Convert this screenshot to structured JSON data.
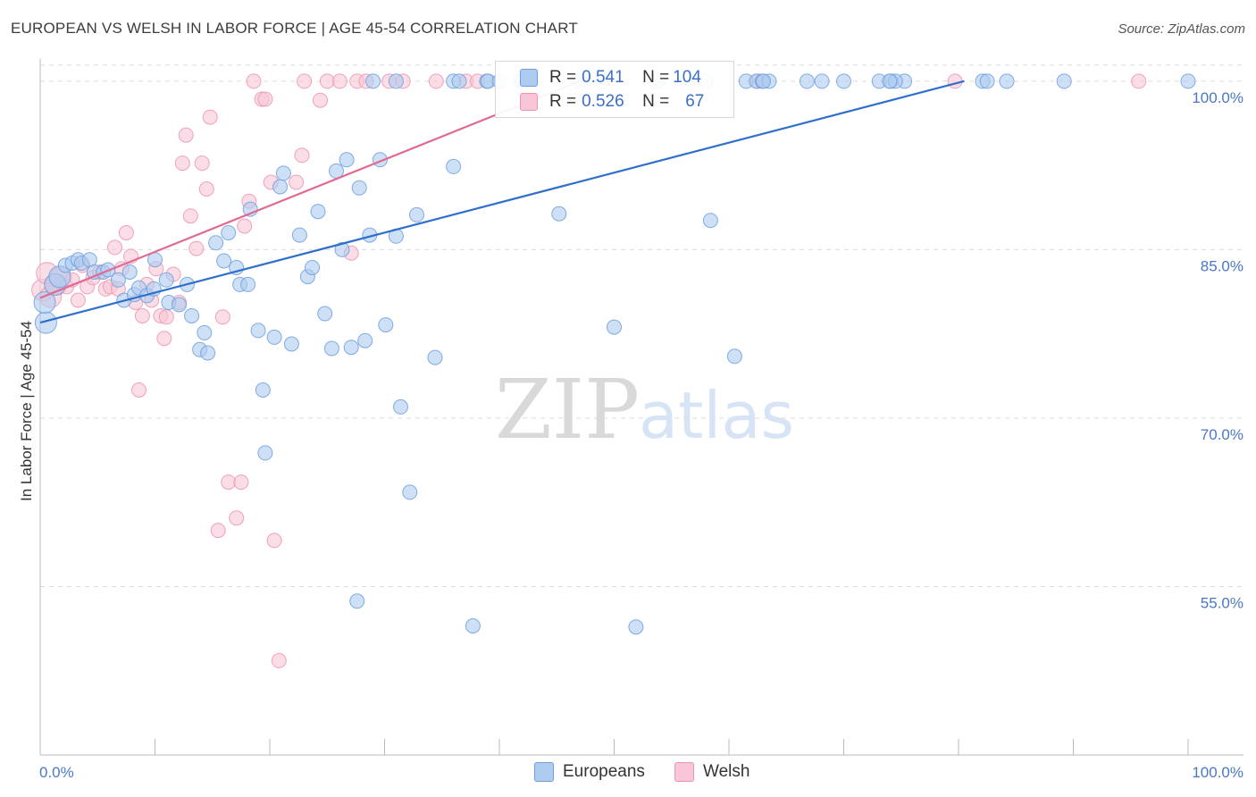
{
  "header": {
    "title": "EUROPEAN VS WELSH IN LABOR FORCE | AGE 45-54 CORRELATION CHART",
    "source": "Source: ZipAtlas.com"
  },
  "watermark": {
    "zip": "ZIP",
    "atlas": "atlas"
  },
  "legend": {
    "items": [
      {
        "name": "Europeans",
        "r_label": "R = ",
        "r_value": "0.541",
        "n_label": "N = ",
        "n_value": "104",
        "color": "#7baee8"
      },
      {
        "name": "Welsh",
        "r_label": "R = ",
        "r_value": "0.526",
        "n_label": "N = ",
        "n_value": "67",
        "color": "#f4a3bd"
      }
    ]
  },
  "colors": {
    "europeans_fill": "#aecbf0",
    "europeans_stroke": "#6d9fde",
    "europeans_line": "#2f6fcc",
    "welsh_fill": "#f8c6d6",
    "welsh_stroke": "#ec94b2",
    "welsh_line": "#e06a92",
    "tick_text": "#4a78c4",
    "grid": "#dcdcdc"
  },
  "chart_data": {
    "type": "scatter",
    "title": "EUROPEAN VS WELSH IN LABOR FORCE | AGE 45-54 CORRELATION CHART",
    "xlabel": "",
    "ylabel": "In Labor Force | Age 45-54",
    "xlim": [
      0,
      100
    ],
    "ylim": [
      40,
      101.5
    ],
    "x_tick_labels": [
      "0.0%",
      "100.0%"
    ],
    "y_ticks": [
      55,
      70,
      85,
      100
    ],
    "y_tick_labels": [
      "55.0%",
      "70.0%",
      "85.0%",
      "100.0%"
    ],
    "grid": true,
    "legend_position": "top-center",
    "series": [
      {
        "name": "Europeans",
        "r": 0.541,
        "n": 104,
        "trend": {
          "x": [
            0,
            80.5
          ],
          "y": [
            78.5,
            100
          ]
        },
        "points": [
          [
            0.5,
            78.5
          ],
          [
            0.4,
            80.3
          ],
          [
            1.3,
            81.9
          ],
          [
            1.7,
            82.6
          ],
          [
            2.2,
            83.6
          ],
          [
            2.8,
            83.8
          ],
          [
            3.3,
            84.1
          ],
          [
            3.6,
            83.8
          ],
          [
            4.3,
            84.1
          ],
          [
            4.7,
            83
          ],
          [
            5.5,
            83
          ],
          [
            5.9,
            83.2
          ],
          [
            6.8,
            82.3
          ],
          [
            7.8,
            83
          ],
          [
            7.3,
            80.5
          ],
          [
            8.2,
            81
          ],
          [
            8.6,
            81.6
          ],
          [
            9.3,
            80.9
          ],
          [
            9.9,
            81.5
          ],
          [
            10.0,
            84.1
          ],
          [
            11,
            82.3
          ],
          [
            11.2,
            80.3
          ],
          [
            12.1,
            80.1
          ],
          [
            12.8,
            81.9
          ],
          [
            13.2,
            79.1
          ],
          [
            13.9,
            76.1
          ],
          [
            14.3,
            77.6
          ],
          [
            14.6,
            75.8
          ],
          [
            15.3,
            85.6
          ],
          [
            16,
            84
          ],
          [
            16.4,
            86.5
          ],
          [
            17.1,
            83.4
          ],
          [
            17.4,
            81.9
          ],
          [
            18.1,
            81.9
          ],
          [
            18.3,
            88.6
          ],
          [
            19,
            77.8
          ],
          [
            19.4,
            72.5
          ],
          [
            19.6,
            66.9
          ],
          [
            20.4,
            77.2
          ],
          [
            20.9,
            90.6
          ],
          [
            21.2,
            91.8
          ],
          [
            21.9,
            76.6
          ],
          [
            22.6,
            86.3
          ],
          [
            23.3,
            82.6
          ],
          [
            23.7,
            83.4
          ],
          [
            24.2,
            88.4
          ],
          [
            24.8,
            79.3
          ],
          [
            25.4,
            76.2
          ],
          [
            25.8,
            92
          ],
          [
            26.3,
            85
          ],
          [
            26.7,
            93
          ],
          [
            27.1,
            76.3
          ],
          [
            27.6,
            53.7
          ],
          [
            27.8,
            90.5
          ],
          [
            28.3,
            76.9
          ],
          [
            28.7,
            86.3
          ],
          [
            29.6,
            93
          ],
          [
            30.1,
            78.3
          ],
          [
            31,
            86.2
          ],
          [
            31.4,
            71
          ],
          [
            32.2,
            63.4
          ],
          [
            32.8,
            88.1
          ],
          [
            34.4,
            75.4
          ],
          [
            36,
            92.4
          ],
          [
            37.7,
            51.5
          ],
          [
            38.9,
            100
          ],
          [
            41.8,
            100
          ],
          [
            45.2,
            88.2
          ],
          [
            47.7,
            100
          ],
          [
            50,
            78.1
          ],
          [
            51.9,
            51.4
          ],
          [
            53.8,
            100
          ],
          [
            58.4,
            87.6
          ],
          [
            60.5,
            75.5
          ],
          [
            61.5,
            100
          ],
          [
            62.4,
            100
          ],
          [
            62.9,
            100
          ],
          [
            66.8,
            100
          ],
          [
            68.1,
            100
          ],
          [
            73.1,
            100
          ],
          [
            74.1,
            100
          ],
          [
            75.3,
            100
          ],
          [
            82.1,
            100
          ],
          [
            84.2,
            100
          ],
          [
            89.2,
            100
          ],
          [
            100,
            100
          ],
          [
            29,
            100
          ],
          [
            31,
            100
          ],
          [
            36,
            100
          ],
          [
            39,
            100
          ],
          [
            40,
            100
          ],
          [
            42,
            100
          ],
          [
            47,
            100
          ],
          [
            49,
            100
          ],
          [
            53.5,
            100
          ],
          [
            57,
            100
          ],
          [
            58,
            100
          ],
          [
            63.5,
            100
          ],
          [
            70,
            100
          ],
          [
            74.5,
            100
          ],
          [
            74,
            100
          ],
          [
            36.5,
            100
          ],
          [
            82.5,
            100
          ],
          [
            63,
            100
          ]
        ]
      },
      {
        "name": "Welsh",
        "r": 0.526,
        "n": 67,
        "trend": {
          "x": [
            0,
            47
          ],
          "y": [
            80.7,
            100
          ]
        },
        "points": [
          [
            0.2,
            81.4
          ],
          [
            0.6,
            82.9
          ],
          [
            0.9,
            80.8
          ],
          [
            1.4,
            81.9
          ],
          [
            1.8,
            82.5
          ],
          [
            2.3,
            81.7
          ],
          [
            2.8,
            82.3
          ],
          [
            3.3,
            80.5
          ],
          [
            3.7,
            83.6
          ],
          [
            4.1,
            81.7
          ],
          [
            4.6,
            82.5
          ],
          [
            5.2,
            83
          ],
          [
            5.7,
            81.5
          ],
          [
            6.1,
            81.7
          ],
          [
            6.5,
            85.2
          ],
          [
            6.8,
            81.5
          ],
          [
            7.1,
            83.3
          ],
          [
            7.5,
            86.5
          ],
          [
            7.9,
            84.4
          ],
          [
            8.3,
            80.3
          ],
          [
            8.6,
            72.5
          ],
          [
            8.9,
            79.1
          ],
          [
            9.3,
            81.9
          ],
          [
            9.7,
            80.5
          ],
          [
            10.1,
            83.3
          ],
          [
            10.5,
            79.1
          ],
          [
            10.8,
            77.1
          ],
          [
            11.0,
            79
          ],
          [
            11.6,
            82.8
          ],
          [
            12.1,
            80.3
          ],
          [
            12.4,
            92.7
          ],
          [
            12.7,
            95.2
          ],
          [
            13.1,
            88
          ],
          [
            13.6,
            85.1
          ],
          [
            14.1,
            92.7
          ],
          [
            14.5,
            90.4
          ],
          [
            14.8,
            96.8
          ],
          [
            15.5,
            60
          ],
          [
            15.9,
            79
          ],
          [
            16.4,
            64.3
          ],
          [
            17.1,
            61.1
          ],
          [
            17.5,
            64.3
          ],
          [
            17.8,
            87.1
          ],
          [
            18.2,
            89.3
          ],
          [
            18.6,
            100
          ],
          [
            19.3,
            98.4
          ],
          [
            19.6,
            98.4
          ],
          [
            20.1,
            91
          ],
          [
            20.4,
            59.1
          ],
          [
            20.8,
            48.4
          ],
          [
            22.3,
            91
          ],
          [
            22.8,
            93.4
          ],
          [
            23,
            100
          ],
          [
            24.4,
            98.3
          ],
          [
            25,
            100
          ],
          [
            26.1,
            100
          ],
          [
            27.1,
            84.7
          ],
          [
            27.6,
            100
          ],
          [
            28.4,
            100
          ],
          [
            30.4,
            100
          ],
          [
            31.6,
            100
          ],
          [
            34.5,
            100
          ],
          [
            37.1,
            100
          ],
          [
            38.1,
            100
          ],
          [
            62.5,
            100
          ],
          [
            79.7,
            100
          ],
          [
            95.7,
            100
          ]
        ]
      }
    ]
  }
}
